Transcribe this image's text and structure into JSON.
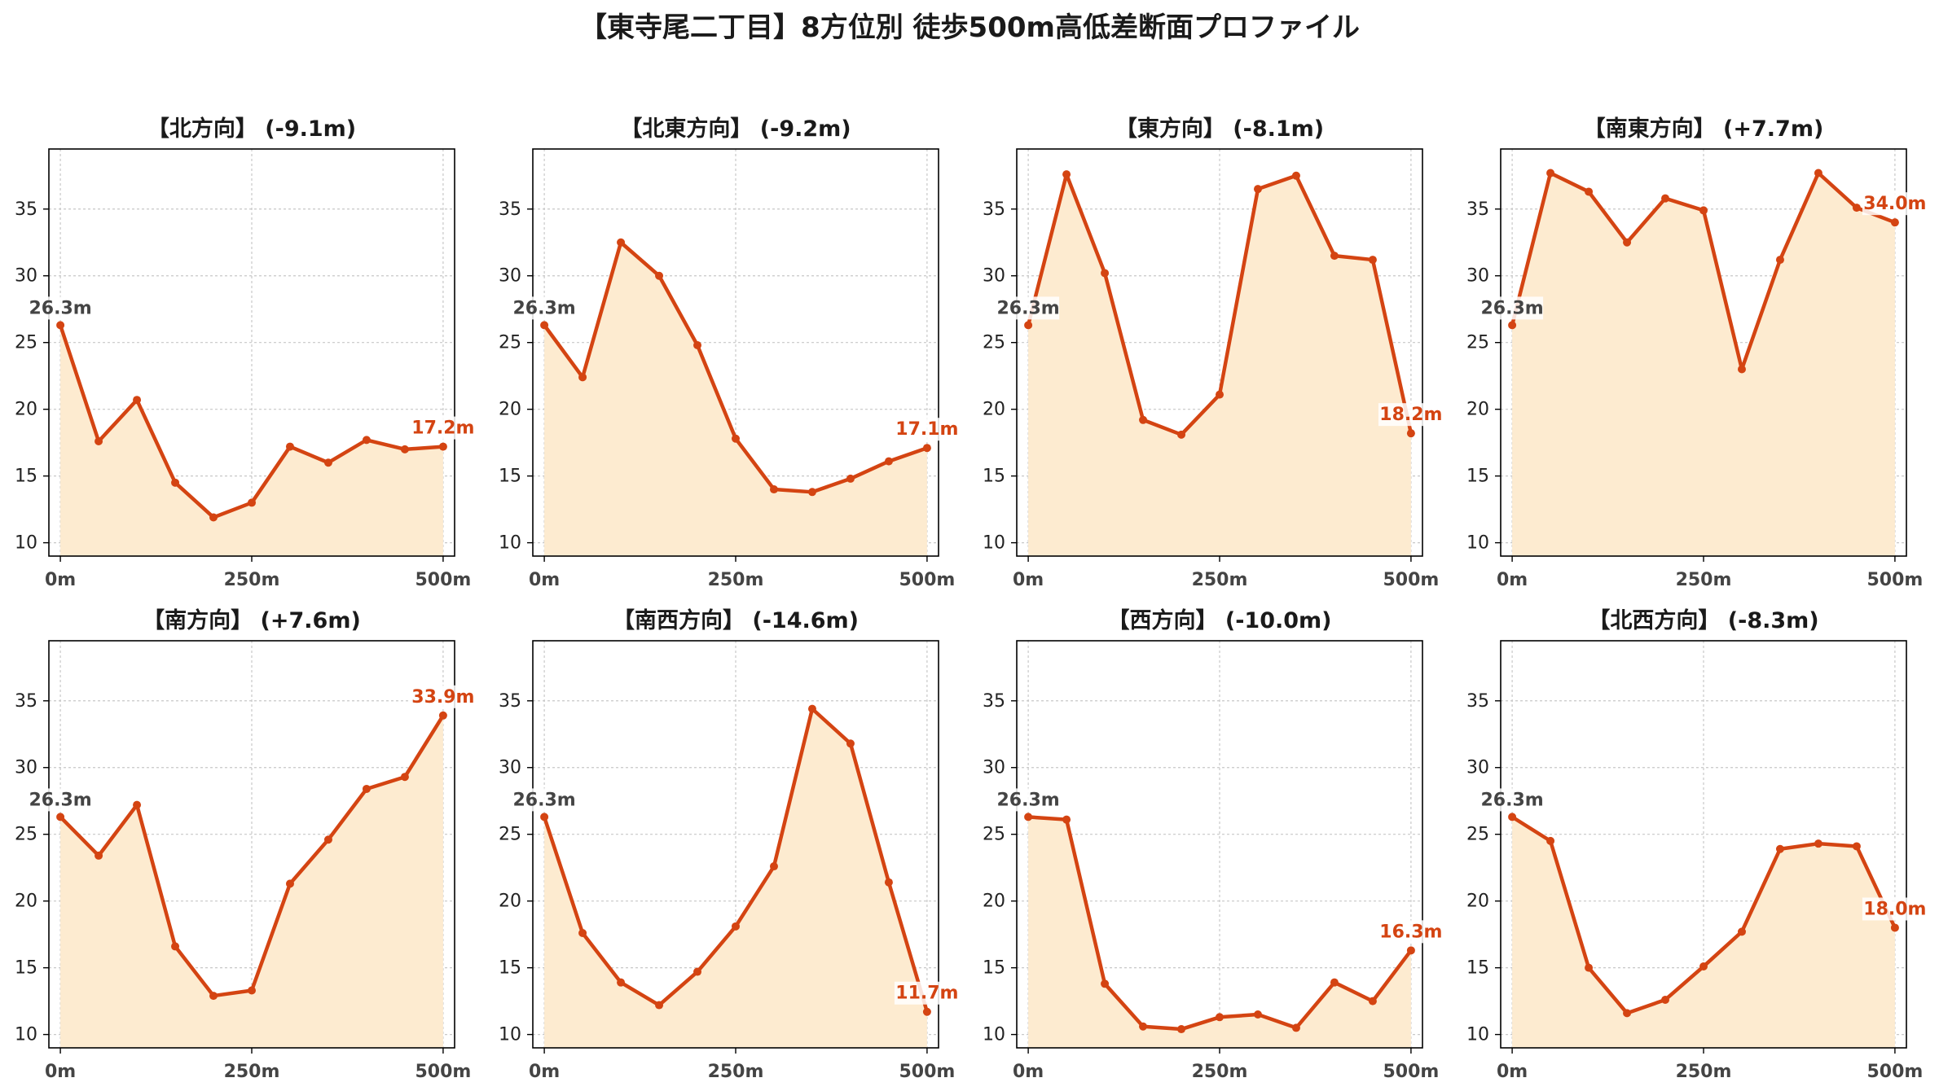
{
  "figure_title": "【東寺尾二丁目】8方位別 徒歩500m高低差断面プロファイル",
  "colors": {
    "line": "#d44412",
    "fill": "#fdebd0",
    "end_label": "#d44412",
    "start_label": "#444444"
  },
  "chart_data": [
    {
      "type": "area",
      "title": "【北方向】 (-9.1m)",
      "x": [
        0,
        50,
        100,
        150,
        200,
        250,
        300,
        350,
        400,
        450,
        500
      ],
      "y": [
        26.3,
        17.6,
        20.7,
        14.5,
        11.9,
        13.0,
        17.2,
        16.0,
        17.7,
        17.0,
        17.2
      ],
      "start_label": "26.3m",
      "end_label": "17.2m",
      "xticks": [
        "0m",
        "250m",
        "500m"
      ],
      "yticks": [
        10,
        15,
        20,
        25,
        30,
        35
      ],
      "xlim": [
        -15,
        515
      ],
      "ylim": [
        9,
        39.5
      ],
      "grid": true
    },
    {
      "type": "area",
      "title": "【北東方向】 (-9.2m)",
      "x": [
        0,
        50,
        100,
        150,
        200,
        250,
        300,
        350,
        400,
        450,
        500
      ],
      "y": [
        26.3,
        22.4,
        32.5,
        30.0,
        24.8,
        17.8,
        14.0,
        13.8,
        14.8,
        16.1,
        17.1
      ],
      "start_label": "26.3m",
      "end_label": "17.1m",
      "xticks": [
        "0m",
        "250m",
        "500m"
      ],
      "yticks": [
        10,
        15,
        20,
        25,
        30,
        35
      ],
      "xlim": [
        -15,
        515
      ],
      "ylim": [
        9,
        39.5
      ],
      "grid": true
    },
    {
      "type": "area",
      "title": "【東方向】 (-8.1m)",
      "x": [
        0,
        50,
        100,
        150,
        200,
        250,
        300,
        350,
        400,
        450,
        500
      ],
      "y": [
        26.3,
        37.6,
        30.2,
        19.2,
        18.1,
        21.1,
        36.5,
        37.5,
        31.5,
        31.2,
        18.2
      ],
      "start_label": "26.3m",
      "end_label": "18.2m",
      "xticks": [
        "0m",
        "250m",
        "500m"
      ],
      "yticks": [
        10,
        15,
        20,
        25,
        30,
        35
      ],
      "xlim": [
        -15,
        515
      ],
      "ylim": [
        9,
        39.5
      ],
      "grid": true
    },
    {
      "type": "area",
      "title": "【南東方向】 (+7.7m)",
      "x": [
        0,
        50,
        100,
        150,
        200,
        250,
        300,
        350,
        400,
        450,
        500
      ],
      "y": [
        26.3,
        37.7,
        36.3,
        32.5,
        35.8,
        34.9,
        23.0,
        31.2,
        37.7,
        35.1,
        34.0
      ],
      "start_label": "26.3m",
      "end_label": "34.0m",
      "xticks": [
        "0m",
        "250m",
        "500m"
      ],
      "yticks": [
        10,
        15,
        20,
        25,
        30,
        35
      ],
      "xlim": [
        -15,
        515
      ],
      "ylim": [
        9,
        39.5
      ],
      "grid": true
    },
    {
      "type": "area",
      "title": "【南方向】 (+7.6m)",
      "x": [
        0,
        50,
        100,
        150,
        200,
        250,
        300,
        350,
        400,
        450,
        500
      ],
      "y": [
        26.3,
        23.4,
        27.2,
        16.6,
        12.9,
        13.3,
        21.3,
        24.6,
        28.4,
        29.3,
        33.9
      ],
      "start_label": "26.3m",
      "end_label": "33.9m",
      "xticks": [
        "0m",
        "250m",
        "500m"
      ],
      "yticks": [
        10,
        15,
        20,
        25,
        30,
        35
      ],
      "xlim": [
        -15,
        515
      ],
      "ylim": [
        9,
        39.5
      ],
      "grid": true
    },
    {
      "type": "area",
      "title": "【南西方向】 (-14.6m)",
      "x": [
        0,
        50,
        100,
        150,
        200,
        250,
        300,
        350,
        400,
        450,
        500
      ],
      "y": [
        26.3,
        17.6,
        13.9,
        12.2,
        14.7,
        18.1,
        22.6,
        34.4,
        31.8,
        21.4,
        11.7
      ],
      "start_label": "26.3m",
      "end_label": "11.7m",
      "xticks": [
        "0m",
        "250m",
        "500m"
      ],
      "yticks": [
        10,
        15,
        20,
        25,
        30,
        35
      ],
      "xlim": [
        -15,
        515
      ],
      "ylim": [
        9,
        39.5
      ],
      "grid": true
    },
    {
      "type": "area",
      "title": "【西方向】 (-10.0m)",
      "x": [
        0,
        50,
        100,
        150,
        200,
        250,
        300,
        350,
        400,
        450,
        500
      ],
      "y": [
        26.3,
        26.1,
        13.8,
        10.6,
        10.4,
        11.3,
        11.5,
        10.5,
        13.9,
        12.5,
        16.3
      ],
      "start_label": "26.3m",
      "end_label": "16.3m",
      "xticks": [
        "0m",
        "250m",
        "500m"
      ],
      "yticks": [
        10,
        15,
        20,
        25,
        30,
        35
      ],
      "xlim": [
        -15,
        515
      ],
      "ylim": [
        9,
        39.5
      ],
      "grid": true
    },
    {
      "type": "area",
      "title": "【北西方向】 (-8.3m)",
      "x": [
        0,
        50,
        100,
        150,
        200,
        250,
        300,
        350,
        400,
        450,
        500
      ],
      "y": [
        26.3,
        24.5,
        15.0,
        11.6,
        12.6,
        15.1,
        17.7,
        23.9,
        24.3,
        24.1,
        18.0
      ],
      "start_label": "26.3m",
      "end_label": "18.0m",
      "xticks": [
        "0m",
        "250m",
        "500m"
      ],
      "yticks": [
        10,
        15,
        20,
        25,
        30,
        35
      ],
      "xlim": [
        -15,
        515
      ],
      "ylim": [
        9,
        39.5
      ],
      "grid": true
    }
  ]
}
